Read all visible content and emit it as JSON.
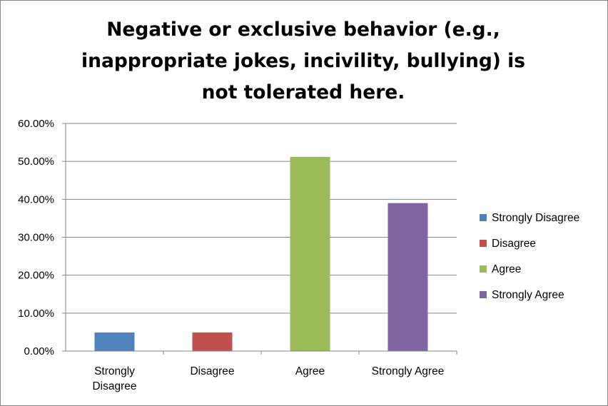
{
  "chart_data": {
    "type": "bar",
    "title": "Negative or exclusive behavior (e.g., inappropriate jokes, incivility, bullying) is not tolerated here.",
    "title_lines": [
      "Negative or exclusive behavior (e.g.,",
      "inappropriate jokes, incivility, bullying) is",
      "not tolerated here."
    ],
    "categories": [
      "Strongly Disagree",
      "Disagree",
      "Agree",
      "Strongly Agree"
    ],
    "category_label_lines": [
      [
        "Strongly",
        "Disagree"
      ],
      [
        "Disagree"
      ],
      [
        "Agree"
      ],
      [
        "Strongly Agree"
      ]
    ],
    "values": [
      4.9,
      4.9,
      51.2,
      39.0
    ],
    "colors": [
      "#4f81bd",
      "#c0504d",
      "#9bbb59",
      "#8064a2"
    ],
    "ylim": [
      0,
      60
    ],
    "yticks": [
      0,
      10,
      20,
      30,
      40,
      50,
      60
    ],
    "ytick_labels": [
      "0.00%",
      "10.00%",
      "20.00%",
      "30.00%",
      "40.00%",
      "50.00%",
      "60.00%"
    ],
    "grid": true,
    "legend_position": "right",
    "legend": [
      "Strongly Disagree",
      "Disagree",
      "Agree",
      "Strongly Agree"
    ],
    "xlabel": "",
    "ylabel": ""
  }
}
